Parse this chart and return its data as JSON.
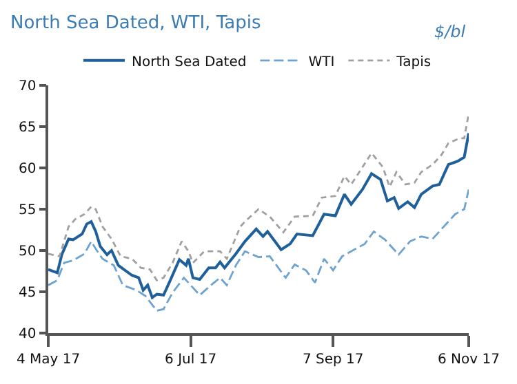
{
  "chart_data": {
    "type": "line",
    "title": "North Sea Dated, WTI, Tapis",
    "annotations": [
      "$/bl"
    ],
    "xlim": [
      "2017-05-04",
      "2017-11-06"
    ],
    "xticks": [
      {
        "value": "2017-05-04",
        "label": "4 May 17"
      },
      {
        "value": "2017-07-06",
        "label": "6 Jul 17"
      },
      {
        "value": "2017-09-07",
        "label": "7 Sep 17"
      },
      {
        "value": "2017-11-06",
        "label": "6 Nov 17"
      }
    ],
    "ylim": [
      40,
      70
    ],
    "yticks": [
      40,
      45,
      50,
      55,
      60,
      65,
      70
    ],
    "legend": "top",
    "marker": "none",
    "series": [
      {
        "name": "North Sea Dated",
        "color": "#1f5f9a",
        "line_style": "solid",
        "x": [
          "2017-05-04",
          "2017-05-08",
          "2017-05-10",
          "2017-05-13",
          "2017-05-15",
          "2017-05-19",
          "2017-05-21",
          "2017-05-23",
          "2017-05-25",
          "2017-05-27",
          "2017-05-30",
          "2017-06-01",
          "2017-06-04",
          "2017-06-07",
          "2017-06-10",
          "2017-06-13",
          "2017-06-15",
          "2017-06-17",
          "2017-06-19",
          "2017-06-21",
          "2017-06-24",
          "2017-06-27",
          "2017-07-01",
          "2017-07-04",
          "2017-07-05",
          "2017-07-07",
          "2017-07-10",
          "2017-07-14",
          "2017-07-17",
          "2017-07-19",
          "2017-07-21",
          "2017-07-26",
          "2017-07-30",
          "2017-08-04",
          "2017-08-07",
          "2017-08-09",
          "2017-08-15",
          "2017-08-19",
          "2017-08-22",
          "2017-08-29",
          "2017-09-03",
          "2017-09-08",
          "2017-09-12",
          "2017-09-15",
          "2017-09-20",
          "2017-09-24",
          "2017-09-28",
          "2017-10-01",
          "2017-10-04",
          "2017-10-06",
          "2017-10-10",
          "2017-10-13",
          "2017-10-16",
          "2017-10-21",
          "2017-10-24",
          "2017-10-28",
          "2017-11-01",
          "2017-11-04",
          "2017-11-06"
        ],
        "values": [
          47.7,
          47.3,
          49.5,
          51.4,
          51.3,
          52.0,
          53.2,
          53.5,
          52.3,
          50.5,
          49.5,
          50.0,
          48.2,
          47.6,
          47.0,
          46.7,
          45.2,
          45.8,
          44.3,
          44.7,
          44.6,
          46.4,
          48.9,
          48.2,
          49.0,
          46.7,
          46.5,
          47.9,
          47.9,
          48.6,
          47.9,
          49.6,
          51.1,
          52.6,
          51.7,
          52.3,
          50.1,
          50.8,
          52.0,
          51.8,
          54.4,
          54.2,
          56.8,
          55.6,
          57.4,
          59.3,
          58.6,
          56.0,
          56.4,
          55.1,
          55.9,
          55.2,
          56.8,
          57.8,
          58.0,
          60.4,
          60.8,
          61.3,
          64.2
        ]
      },
      {
        "name": "WTI",
        "color": "#6fa3cf",
        "line_style": "dashed",
        "x": [
          "2017-05-04",
          "2017-05-08",
          "2017-05-11",
          "2017-05-15",
          "2017-05-20",
          "2017-05-23",
          "2017-05-25",
          "2017-05-28",
          "2017-06-02",
          "2017-06-06",
          "2017-06-12",
          "2017-06-16",
          "2017-06-21",
          "2017-06-24",
          "2017-06-28",
          "2017-07-03",
          "2017-07-06",
          "2017-07-10",
          "2017-07-15",
          "2017-07-19",
          "2017-07-22",
          "2017-07-26",
          "2017-07-30",
          "2017-08-05",
          "2017-08-10",
          "2017-08-17",
          "2017-08-21",
          "2017-08-26",
          "2017-08-30",
          "2017-09-03",
          "2017-09-07",
          "2017-09-11",
          "2017-09-17",
          "2017-09-21",
          "2017-09-25",
          "2017-09-30",
          "2017-10-06",
          "2017-10-11",
          "2017-10-16",
          "2017-10-21",
          "2017-10-25",
          "2017-10-31",
          "2017-11-04",
          "2017-11-06"
        ],
        "values": [
          45.8,
          46.4,
          48.5,
          48.8,
          49.6,
          51.1,
          50.2,
          49.0,
          48.2,
          45.8,
          45.2,
          44.5,
          42.7,
          42.9,
          44.9,
          46.7,
          45.8,
          44.6,
          45.8,
          46.7,
          45.8,
          48.2,
          49.9,
          49.2,
          49.3,
          46.7,
          48.3,
          47.6,
          46.1,
          49.0,
          47.6,
          49.3,
          50.2,
          50.8,
          52.3,
          51.3,
          49.5,
          51.1,
          51.7,
          51.4,
          52.6,
          54.4,
          55.0,
          57.4
        ]
      },
      {
        "name": "Tapis",
        "color": "#a0a0a0",
        "line_style": "dotted",
        "x": [
          "2017-05-04",
          "2017-05-09",
          "2017-05-13",
          "2017-05-16",
          "2017-05-20",
          "2017-05-23",
          "2017-05-25",
          "2017-05-28",
          "2017-06-01",
          "2017-06-05",
          "2017-06-10",
          "2017-06-14",
          "2017-06-18",
          "2017-06-21",
          "2017-06-24",
          "2017-06-28",
          "2017-07-02",
          "2017-07-05",
          "2017-07-07",
          "2017-07-12",
          "2017-07-19",
          "2017-07-22",
          "2017-07-28",
          "2017-07-30",
          "2017-08-05",
          "2017-08-10",
          "2017-08-16",
          "2017-08-21",
          "2017-08-29",
          "2017-09-02",
          "2017-09-08",
          "2017-09-12",
          "2017-09-15",
          "2017-09-20",
          "2017-09-24",
          "2017-09-29",
          "2017-10-02",
          "2017-10-05",
          "2017-10-09",
          "2017-10-13",
          "2017-10-16",
          "2017-10-21",
          "2017-10-25",
          "2017-10-28",
          "2017-11-02",
          "2017-11-04",
          "2017-11-06"
        ],
        "values": [
          49.6,
          49.3,
          52.9,
          53.8,
          54.4,
          55.3,
          55.0,
          52.9,
          51.4,
          49.3,
          49.0,
          47.9,
          47.7,
          46.4,
          46.7,
          48.5,
          51.1,
          49.9,
          48.5,
          49.9,
          49.9,
          49.0,
          52.9,
          53.5,
          55.0,
          54.1,
          52.2,
          54.1,
          54.2,
          56.4,
          56.6,
          59.0,
          58.0,
          60.1,
          61.8,
          60.1,
          57.7,
          59.5,
          58.0,
          58.2,
          59.5,
          60.4,
          61.6,
          63.0,
          63.6,
          63.6,
          66.6
        ]
      }
    ]
  }
}
